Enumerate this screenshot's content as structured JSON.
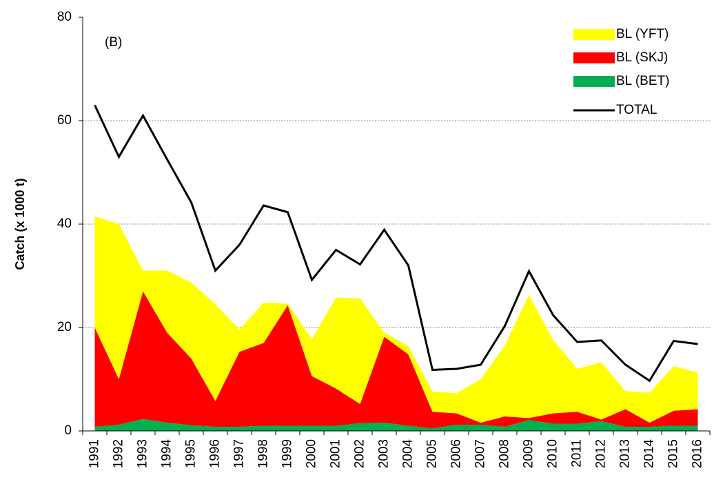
{
  "chart_data": {
    "type": "area",
    "annotation": "(B)",
    "y_label": "Catch (x 1000 t)",
    "categories": [
      "1991",
      "1992",
      "1993",
      "1994",
      "1995",
      "1996",
      "1997",
      "1998",
      "1999",
      "2000",
      "2001",
      "2002",
      "2003",
      "2004",
      "2005",
      "2006",
      "2007",
      "2008",
      "2009",
      "2010",
      "2011",
      "2012",
      "2013",
      "2014",
      "2015",
      "2016"
    ],
    "series": [
      {
        "name": "BL (YFT)",
        "color": "#ffff00",
        "type": "area",
        "values": [
          21.5,
          30,
          4,
          12,
          14.7,
          18.7,
          4.3,
          7.8,
          0.3,
          7.1,
          17.6,
          20.4,
          0.8,
          1.6,
          3.9,
          3.9,
          8.4,
          13.7,
          23.8,
          14.2,
          8.3,
          11.1,
          3.5,
          5.8,
          8.6,
          7.1
        ]
      },
      {
        "name": "BL (SKJ)",
        "color": "#ff0000",
        "type": "area",
        "values": [
          19.2,
          8.8,
          24.7,
          17.4,
          12.9,
          5,
          14.5,
          16,
          23.3,
          9.6,
          7.2,
          3.7,
          16.6,
          13.8,
          3.2,
          2.2,
          0.4,
          2,
          0.4,
          2,
          2.3,
          0.3,
          3.4,
          0.8,
          2.9,
          3.2
        ]
      },
      {
        "name": "BL (BET)",
        "color": "#00b050",
        "type": "area",
        "values": [
          0.8,
          1.2,
          2.3,
          1.6,
          1.1,
          0.8,
          0.8,
          1,
          1,
          1,
          1,
          1.5,
          1.6,
          1,
          0.5,
          1.2,
          1.2,
          0.8,
          2.1,
          1.4,
          1.4,
          1.9,
          0.8,
          0.8,
          1,
          1
        ]
      },
      {
        "name": "TOTAL",
        "color": "#000000",
        "type": "line",
        "values": [
          63,
          53,
          61,
          52.5,
          44.2,
          31,
          36,
          43.6,
          42.3,
          29.2,
          35,
          32.2,
          38.9,
          32,
          11.8,
          12,
          12.8,
          20.3,
          30.9,
          22.4,
          17.2,
          17.5,
          12.8,
          9.7,
          17.4,
          16.8
        ]
      }
    ],
    "ylim": [
      0,
      80
    ],
    "yticks": [
      0,
      20,
      40,
      60,
      80
    ],
    "grid": true,
    "legend": "top-right"
  }
}
